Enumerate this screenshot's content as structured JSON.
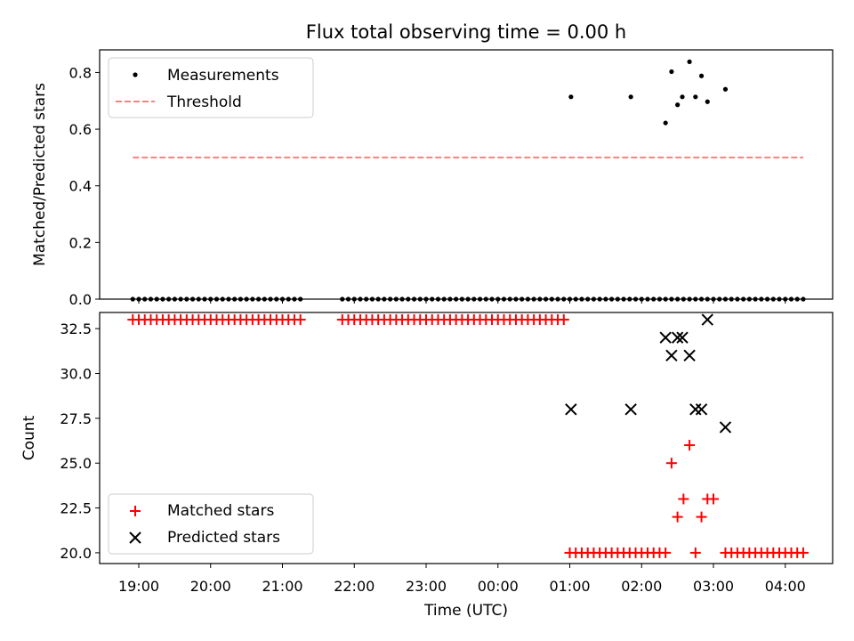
{
  "chart_data": {
    "title": "Flux total observing time = 0.00 h",
    "x_type": "time",
    "xlabel": "Time (UTC)",
    "x_ticks": [
      "19:00",
      "20:00",
      "21:00",
      "22:00",
      "23:00",
      "00:00",
      "01:00",
      "02:00",
      "03:00",
      "04:00"
    ],
    "top": {
      "type": "scatter",
      "ylabel": "Matched/Predicted stars",
      "ylim": [
        0.0,
        0.88
      ],
      "y_ticks": [
        "0.0",
        "0.2",
        "0.4",
        "0.6",
        "0.8"
      ],
      "legend_placement": "upper-left",
      "series": [
        {
          "name": "Measurements",
          "color": "#000000",
          "marker": "dot",
          "x": [
            "18:55",
            "19:00",
            "19:05",
            "19:10",
            "19:15",
            "19:20",
            "19:25",
            "19:30",
            "19:35",
            "19:40",
            "19:45",
            "19:50",
            "19:55",
            "20:00",
            "20:05",
            "20:10",
            "20:15",
            "20:20",
            "20:25",
            "20:30",
            "20:35",
            "20:40",
            "20:45",
            "20:50",
            "20:55",
            "21:00",
            "21:05",
            "21:10",
            "21:15",
            "21:50",
            "21:55",
            "22:00",
            "22:05",
            "22:10",
            "22:15",
            "22:20",
            "22:25",
            "22:30",
            "22:35",
            "22:40",
            "22:45",
            "22:50",
            "22:55",
            "23:00",
            "23:05",
            "23:10",
            "23:15",
            "23:20",
            "23:25",
            "23:30",
            "23:35",
            "23:40",
            "23:45",
            "23:50",
            "23:55",
            "00:00",
            "00:05",
            "00:10",
            "00:15",
            "00:20",
            "00:25",
            "00:30",
            "00:35",
            "00:40",
            "00:45",
            "00:50",
            "00:55",
            "01:00",
            "01:05",
            "01:10",
            "01:15",
            "01:20",
            "01:25",
            "01:30",
            "01:35",
            "01:40",
            "01:45",
            "01:50",
            "01:55",
            "02:00",
            "02:05",
            "02:10",
            "02:15",
            "02:20",
            "02:25",
            "02:30",
            "02:35",
            "02:40",
            "02:45",
            "02:50",
            "02:55",
            "03:00",
            "03:05",
            "03:10",
            "03:15",
            "03:20",
            "03:25",
            "03:30",
            "03:35",
            "03:40",
            "03:45",
            "03:50",
            "03:55",
            "04:00",
            "04:05",
            "04:10",
            "04:15",
            "01:01",
            "01:51",
            "02:20",
            "02:25",
            "02:30",
            "02:34",
            "02:40",
            "02:45",
            "02:50",
            "02:55",
            "03:10"
          ],
          "y": [
            0,
            0,
            0,
            0,
            0,
            0,
            0,
            0,
            0,
            0,
            0,
            0,
            0,
            0,
            0,
            0,
            0,
            0,
            0,
            0,
            0,
            0,
            0,
            0,
            0,
            0,
            0,
            0,
            0,
            0,
            0,
            0,
            0,
            0,
            0,
            0,
            0,
            0,
            0,
            0,
            0,
            0,
            0,
            0,
            0,
            0,
            0,
            0,
            0,
            0,
            0,
            0,
            0,
            0,
            0,
            0,
            0,
            0,
            0,
            0,
            0,
            0,
            0,
            0,
            0,
            0,
            0,
            0,
            0,
            0,
            0,
            0,
            0,
            0,
            0,
            0,
            0,
            0,
            0,
            0,
            0,
            0,
            0,
            0,
            0,
            0,
            0,
            0,
            0,
            0,
            0,
            0,
            0,
            0,
            0,
            0,
            0,
            0,
            0,
            0,
            0,
            0,
            0,
            0,
            0,
            0,
            0,
            0.714,
            0.714,
            0.622,
            0.803,
            0.686,
            0.714,
            0.838,
            0.714,
            0.788,
            0.697,
            0.741
          ]
        },
        {
          "name": "Threshold",
          "color": "#ff7f7f",
          "line": "dashed",
          "x": [
            "18:55",
            "04:15"
          ],
          "y": [
            0.5,
            0.5
          ]
        }
      ]
    },
    "bottom": {
      "type": "scatter",
      "ylabel": "Count",
      "ylim": [
        19.4,
        33.4
      ],
      "y_ticks": [
        "20.0",
        "22.5",
        "25.0",
        "27.5",
        "30.0",
        "32.5"
      ],
      "legend_placement": "lower-left",
      "series": [
        {
          "name": "Matched stars",
          "color": "#ff0000",
          "marker": "plus",
          "x": [
            "18:55",
            "19:00",
            "19:05",
            "19:10",
            "19:15",
            "19:20",
            "19:25",
            "19:30",
            "19:35",
            "19:40",
            "19:45",
            "19:50",
            "19:55",
            "20:00",
            "20:05",
            "20:10",
            "20:15",
            "20:20",
            "20:25",
            "20:30",
            "20:35",
            "20:40",
            "20:45",
            "20:50",
            "20:55",
            "21:00",
            "21:05",
            "21:10",
            "21:15",
            "21:50",
            "21:55",
            "22:00",
            "22:05",
            "22:10",
            "22:15",
            "22:20",
            "22:25",
            "22:30",
            "22:35",
            "22:40",
            "22:45",
            "22:50",
            "22:55",
            "23:00",
            "23:05",
            "23:10",
            "23:15",
            "23:20",
            "23:25",
            "23:30",
            "23:35",
            "23:40",
            "23:45",
            "23:50",
            "23:55",
            "00:00",
            "00:05",
            "00:10",
            "00:15",
            "00:20",
            "00:25",
            "00:30",
            "00:35",
            "00:40",
            "00:45",
            "00:50",
            "00:55",
            "01:00",
            "01:05",
            "01:10",
            "01:15",
            "01:20",
            "01:25",
            "01:30",
            "01:35",
            "01:40",
            "01:45",
            "01:50",
            "01:55",
            "02:00",
            "02:05",
            "02:10",
            "02:15",
            "02:20",
            "02:25",
            "02:30",
            "02:35",
            "02:40",
            "02:45",
            "02:50",
            "02:55",
            "03:00",
            "03:10",
            "03:15",
            "03:20",
            "03:25",
            "03:30",
            "03:35",
            "03:40",
            "03:45",
            "03:50",
            "03:55",
            "04:00",
            "04:05",
            "04:10",
            "04:15"
          ],
          "y": [
            33,
            33,
            33,
            33,
            33,
            33,
            33,
            33,
            33,
            33,
            33,
            33,
            33,
            33,
            33,
            33,
            33,
            33,
            33,
            33,
            33,
            33,
            33,
            33,
            33,
            33,
            33,
            33,
            33,
            33,
            33,
            33,
            33,
            33,
            33,
            33,
            33,
            33,
            33,
            33,
            33,
            33,
            33,
            33,
            33,
            33,
            33,
            33,
            33,
            33,
            33,
            33,
            33,
            33,
            33,
            33,
            33,
            33,
            33,
            33,
            33,
            33,
            33,
            33,
            33,
            33,
            33,
            20,
            20,
            20,
            20,
            20,
            20,
            20,
            20,
            20,
            20,
            20,
            20,
            20,
            20,
            20,
            20,
            20,
            25,
            22,
            23,
            26,
            20,
            22,
            23,
            23,
            20,
            20,
            20,
            20,
            20,
            20,
            20,
            20,
            20,
            20,
            20,
            20,
            20,
            20
          ]
        },
        {
          "name": "Predicted stars",
          "color": "#000000",
          "marker": "x",
          "x": [
            "01:01",
            "01:51",
            "02:20",
            "02:25",
            "02:30",
            "02:34",
            "02:40",
            "02:45",
            "02:50",
            "02:55",
            "03:10"
          ],
          "y": [
            28,
            28,
            32,
            31,
            32,
            32,
            31,
            28,
            28,
            33,
            27
          ]
        }
      ]
    }
  }
}
